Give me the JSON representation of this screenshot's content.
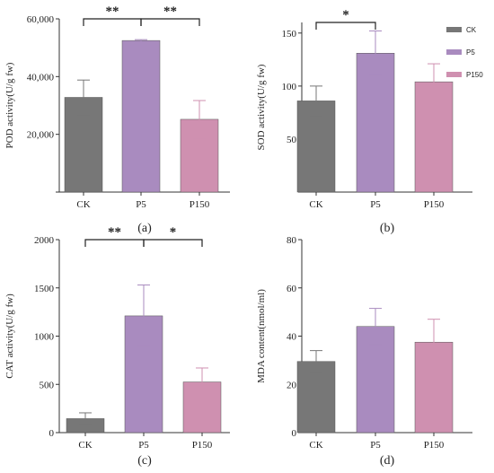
{
  "figure": {
    "legend": [
      {
        "name": "CK",
        "color": "#777777"
      },
      {
        "name": "P5",
        "color": "#a98bbf"
      },
      {
        "name": "P150",
        "color": "#cf90b0"
      }
    ]
  },
  "chart_data": [
    {
      "type": "bar",
      "panel_label": "(a)",
      "categories": [
        "CK",
        "P5",
        "P150"
      ],
      "values": [
        32800,
        52500,
        25200
      ],
      "errors": [
        6000,
        300,
        6500
      ],
      "colors": [
        "#777777",
        "#a98bbf",
        "#cf90b0"
      ],
      "ylabel": "POD activity(U/g fw)",
      "ylim": [
        0,
        60000
      ],
      "yticks": [
        0,
        20000,
        40000,
        60000
      ],
      "ytick_labels": [
        "",
        "20,000",
        "40,000",
        "60,000"
      ],
      "significance": [
        {
          "from": 0,
          "to": 1,
          "label": "**"
        },
        {
          "from": 1,
          "to": 2,
          "label": "**"
        }
      ]
    },
    {
      "type": "bar",
      "panel_label": "(b)",
      "categories": [
        "CK",
        "P5",
        "P150"
      ],
      "values": [
        86,
        131,
        104
      ],
      "errors": [
        14,
        21,
        17
      ],
      "colors": [
        "#777777",
        "#a98bbf",
        "#cf90b0"
      ],
      "ylabel": "SOD activity(U/g fw)",
      "ylim": [
        0,
        160
      ],
      "yticks": [
        0,
        50,
        100,
        150
      ],
      "ytick_labels": [
        "",
        "50",
        "100",
        "150"
      ],
      "significance": [
        {
          "from": 0,
          "to": 1,
          "label": "*"
        }
      ],
      "legend": "top-right"
    },
    {
      "type": "bar",
      "panel_label": "(c)",
      "categories": [
        "CK",
        "P5",
        "P150"
      ],
      "values": [
        145,
        1210,
        525
      ],
      "errors": [
        60,
        320,
        145
      ],
      "colors": [
        "#777777",
        "#a98bbf",
        "#cf90b0"
      ],
      "ylabel": "CAT activity(U/g fw)",
      "ylim": [
        0,
        2000
      ],
      "yticks": [
        0,
        500,
        1000,
        1500,
        2000
      ],
      "ytick_labels": [
        "0",
        "500",
        "1000",
        "1500",
        "2000"
      ],
      "significance": [
        {
          "from": 0,
          "to": 1,
          "label": "**"
        },
        {
          "from": 1,
          "to": 2,
          "label": "*"
        }
      ]
    },
    {
      "type": "bar",
      "panel_label": "(d)",
      "categories": [
        "CK",
        "P5",
        "P150"
      ],
      "values": [
        29.5,
        44,
        37.5
      ],
      "errors": [
        4.5,
        7.5,
        9.5
      ],
      "colors": [
        "#777777",
        "#a98bbf",
        "#cf90b0"
      ],
      "ylabel": "MDA content(nmol/ml)",
      "ylim": [
        0,
        80
      ],
      "yticks": [
        0,
        20,
        40,
        60,
        80
      ],
      "ytick_labels": [
        "0",
        "20",
        "40",
        "60",
        "80"
      ],
      "significance": []
    }
  ]
}
